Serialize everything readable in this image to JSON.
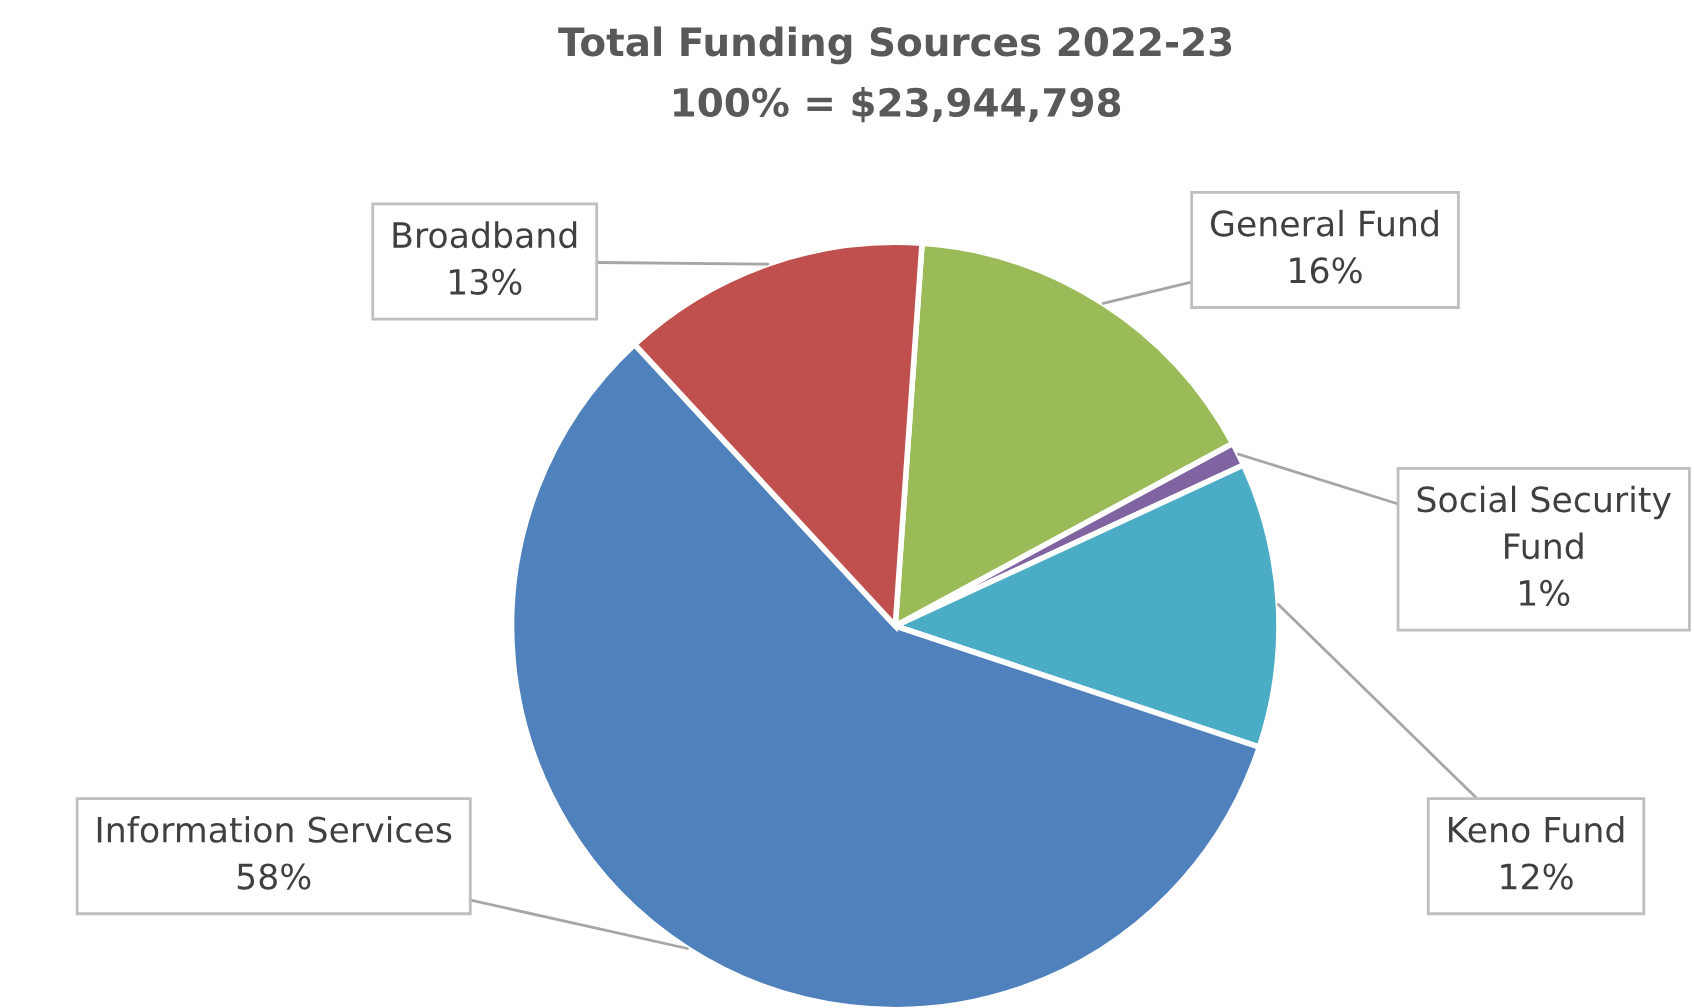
{
  "chart_data": {
    "type": "pie",
    "title": "Total Funding Sources 2022-23",
    "subtitle": "100% = $23,944,798",
    "categories": [
      "General Fund",
      "Social Security Fund",
      "Keno Fund",
      "Information Services",
      "Broadband"
    ],
    "values": [
      16,
      1,
      12,
      58,
      13
    ],
    "colors": [
      "#9bbb59",
      "#8064a2",
      "#4bacc6",
      "#4f81bd",
      "#c0504d"
    ],
    "value_labels": [
      "16%",
      "1%",
      "12%",
      "58%",
      "13%"
    ],
    "legend": false
  }
}
